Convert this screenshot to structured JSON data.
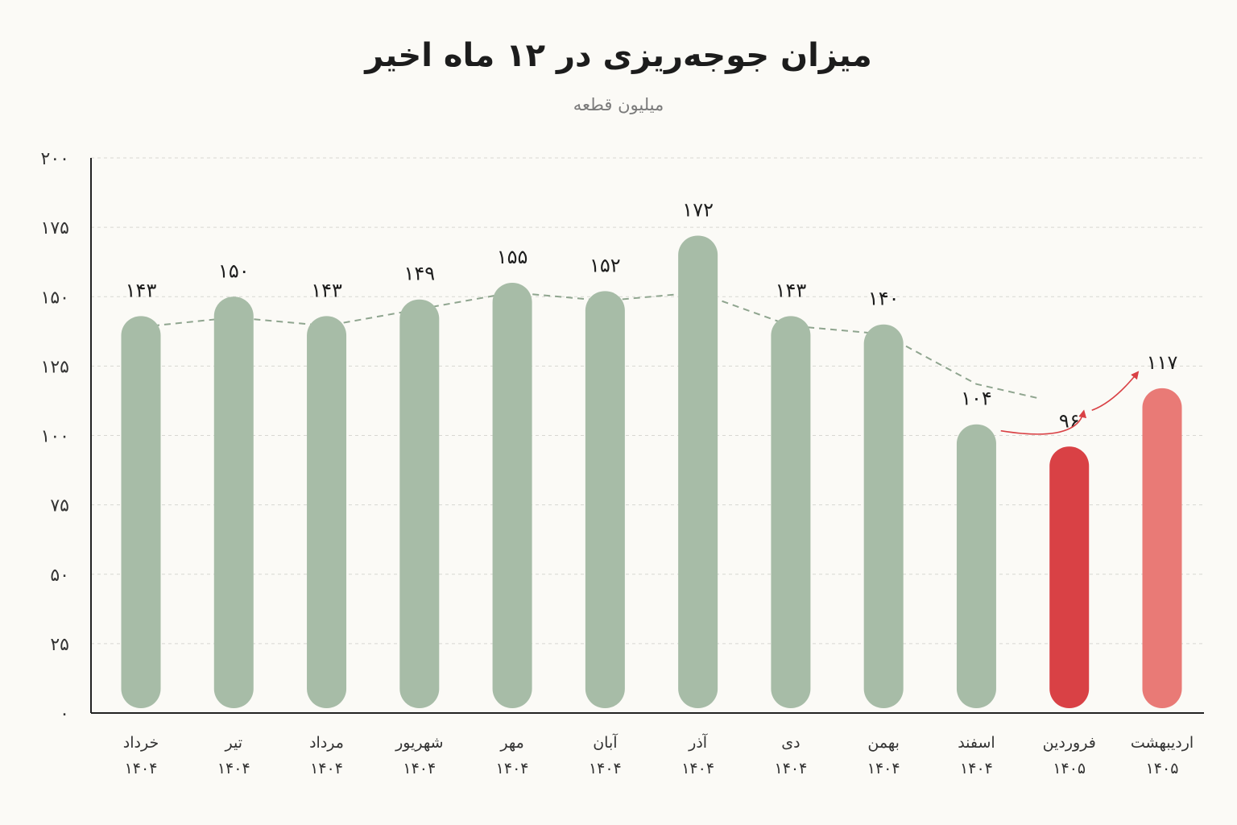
{
  "title": "میزان جوجه‌ریزی در ۱۲ ماه اخیر",
  "subtitle": "میلیون قطعه",
  "chart_data": {
    "type": "bar",
    "title": "میزان جوجه‌ریزی در ۱۲ ماه اخیر",
    "subtitle": "میلیون قطعه",
    "xlabel": "",
    "ylabel": "",
    "ylim": [
      0,
      200
    ],
    "grid": true,
    "y_ticks": [
      0,
      25,
      50,
      75,
      100,
      125,
      150,
      175,
      200
    ],
    "y_tick_labels": [
      "۰",
      "۲۵",
      "۵۰",
      "۷۵",
      "۱۰۰",
      "۱۲۵",
      "۱۵۰",
      "۱۷۵",
      "۲۰۰"
    ],
    "categories": [
      "خرداد ۱۴۰۴",
      "تیر ۱۴۰۴",
      "مرداد ۱۴۰۴",
      "شهریور ۱۴۰۴",
      "مهر ۱۴۰۴",
      "آبان ۱۴۰۴",
      "آذر ۱۴۰۴",
      "دی ۱۴۰۴",
      "بهمن ۱۴۰۴",
      "اسفند ۱۴۰۴",
      "فروردین ۱۴۰۵",
      "اردیبهشت ۱۴۰۵"
    ],
    "month_labels": [
      "خرداد",
      "تیر",
      "مرداد",
      "شهریور",
      "مهر",
      "آبان",
      "آذر",
      "دی",
      "بهمن",
      "اسفند",
      "فروردین",
      "اردیبهشت"
    ],
    "year_labels": [
      "۱۴۰۴",
      "۱۴۰۴",
      "۱۴۰۴",
      "۱۴۰۴",
      "۱۴۰۴",
      "۱۴۰۴",
      "۱۴۰۴",
      "۱۴۰۴",
      "۱۴۰۴",
      "۱۴۰۴",
      "۱۴۰۵",
      "۱۴۰۵"
    ],
    "values": [
      143,
      150,
      143,
      149,
      155,
      152,
      172,
      143,
      140,
      104,
      96,
      117
    ],
    "value_labels": [
      "۱۴۳",
      "۱۵۰",
      "۱۴۳",
      "۱۴۹",
      "۱۵۵",
      "۱۵۲",
      "۱۷۲",
      "۱۴۳",
      "۱۴۰",
      "۱۰۴",
      "۹۶",
      "۱۱۷"
    ],
    "bar_colors": [
      "#a7bca7",
      "#a7bca7",
      "#a7bca7",
      "#a7bca7",
      "#a7bca7",
      "#a7bca7",
      "#a7bca7",
      "#a7bca7",
      "#a7bca7",
      "#a7bca7",
      "#d94145",
      "#e97a76"
    ],
    "trend_line": {
      "style": "dashed",
      "color": "#8fa58f",
      "values": [
        143,
        146,
        143,
        149,
        155,
        152,
        155,
        143,
        140,
        122,
        117
      ]
    },
    "annotations": [
      {
        "type": "arrow",
        "from_category": "اسفند ۱۴۰۴",
        "to_category": "فروردین ۱۴۰۵",
        "color": "#d94145"
      },
      {
        "type": "arrow",
        "from_category": "فروردین ۱۴۰۵",
        "to_category": "اردیبهشت ۱۴۰۵",
        "color": "#d94145"
      }
    ],
    "colors": {
      "default_bar": "#a7bca7",
      "drop_bar": "#d94145",
      "recovery_bar": "#e97a76",
      "grid": "#d8d8d2",
      "axis": "#222222"
    }
  }
}
